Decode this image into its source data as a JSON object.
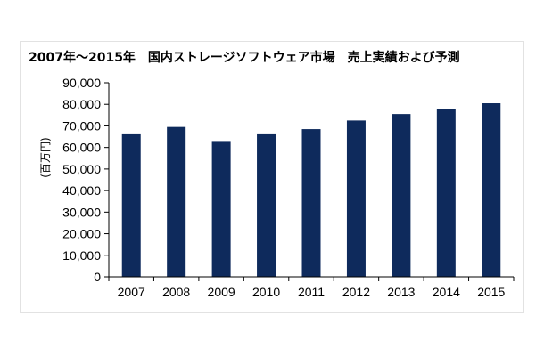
{
  "chart_data": {
    "type": "bar",
    "title": "2007年～2015年　国内ストレージソフトウェア市場　売上実績および予測",
    "xlabel": "",
    "ylabel": "(百万円)",
    "categories": [
      "2007",
      "2008",
      "2009",
      "2010",
      "2011",
      "2012",
      "2013",
      "2014",
      "2015"
    ],
    "values": [
      66500,
      69500,
      63000,
      66500,
      68500,
      72500,
      75500,
      78000,
      80500
    ],
    "ylim": [
      0,
      90000
    ],
    "yticks": [
      "0",
      "10,000",
      "20,000",
      "30,000",
      "40,000",
      "50,000",
      "60,000",
      "70,000",
      "80,000",
      "90,000"
    ],
    "grid": false,
    "legend": "none",
    "bar_color": "#0e2a5c"
  }
}
